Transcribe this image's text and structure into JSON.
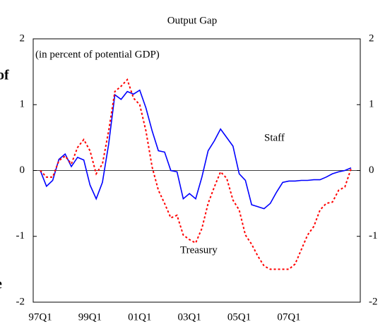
{
  "chart_data": {
    "type": "line",
    "title": "Output Gap",
    "subtitle": "(in percent of potential GDP)",
    "fragments": [
      "of",
      "e"
    ],
    "categories": [
      "97Q1",
      null,
      null,
      null,
      null,
      null,
      null,
      null,
      "99Q1",
      null,
      null,
      null,
      null,
      null,
      null,
      null,
      "01Q1",
      null,
      null,
      null,
      null,
      null,
      null,
      null,
      "03Q1",
      null,
      null,
      null,
      null,
      null,
      null,
      null,
      "05Q1",
      null,
      null,
      null,
      null,
      null,
      null,
      null,
      "07Q1",
      null,
      null,
      null,
      null,
      null,
      null,
      null,
      null,
      null,
      null
    ],
    "series": [
      {
        "name": "Staff",
        "color": "#0000ff",
        "dash": "solid",
        "values": [
          0,
          -0.24,
          -0.15,
          0.17,
          0.25,
          0.06,
          0.2,
          0.16,
          -0.22,
          -0.43,
          -0.18,
          0.4,
          1.15,
          1.08,
          1.2,
          1.16,
          1.22,
          0.95,
          0.6,
          0.3,
          0.28,
          0.0,
          -0.02,
          -0.43,
          -0.35,
          -0.43,
          -0.1,
          0.3,
          0.45,
          0.63,
          0.5,
          0.37,
          -0.05,
          -0.15,
          -0.52,
          -0.55,
          -0.58,
          -0.5,
          -0.33,
          -0.18,
          -0.16,
          -0.16,
          -0.15,
          -0.15,
          -0.14,
          -0.14,
          -0.1,
          -0.05,
          -0.02,
          0.0,
          0.04
        ]
      },
      {
        "name": "Treasury",
        "color": "#ff0000",
        "dash": "dotted",
        "values": [
          0,
          -0.1,
          -0.1,
          0.15,
          0.22,
          0.1,
          0.35,
          0.47,
          0.3,
          -0.05,
          0.1,
          0.6,
          1.2,
          1.28,
          1.38,
          1.1,
          1.0,
          0.6,
          0.05,
          -0.3,
          -0.5,
          -0.72,
          -0.68,
          -0.98,
          -1.05,
          -1.1,
          -0.88,
          -0.5,
          -0.25,
          -0.02,
          -0.12,
          -0.45,
          -0.6,
          -0.98,
          -1.12,
          -1.3,
          -1.45,
          -1.5,
          -1.5,
          -1.5,
          -1.5,
          -1.42,
          -1.2,
          -0.98,
          -0.85,
          -0.6,
          -0.5,
          -0.48,
          -0.3,
          -0.25,
          0.03
        ]
      }
    ],
    "ylim": [
      -2,
      2
    ],
    "yticks": [
      -2,
      -1,
      0,
      1,
      2
    ],
    "y2lim": [
      -2,
      2
    ],
    "y2ticks": [
      -2,
      -1,
      0,
      1,
      2
    ],
    "zero_line": true
  }
}
